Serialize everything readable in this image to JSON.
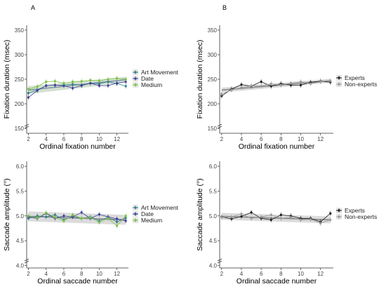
{
  "panel_labels": [
    "A",
    "B"
  ],
  "colors": {
    "art_movement": "#2e7d86",
    "date": "#3b3f9a",
    "medium": "#7ac143",
    "experts": "#1a1a1a",
    "non_experts": "#9a9a9a",
    "band_fix": "#c8d6c0",
    "band_gray": "#cfcfcf",
    "fit_fix": "#7f95a8",
    "fit_gray": "#8a8a8a"
  },
  "chart_data": [
    {
      "panel": "A",
      "type": "line",
      "xlabel": "Ordinal fixation number",
      "ylabel": "Fixation duration (msec)",
      "xticks": [
        2,
        4,
        6,
        8,
        10,
        12
      ],
      "yticks": [
        150,
        200,
        250,
        300,
        350
      ],
      "xlim": [
        1.8,
        13.3
      ],
      "ylim": [
        140,
        360
      ],
      "x": [
        2,
        3,
        4,
        5,
        6,
        7,
        8,
        9,
        10,
        11,
        12,
        13
      ],
      "legend_position": "right",
      "series": [
        {
          "name": "Art Movement",
          "color_key": "art_movement",
          "values": [
            222,
            228,
            237,
            238,
            238,
            240,
            238,
            242,
            241,
            245,
            241,
            236
          ]
        },
        {
          "name": "Date",
          "color_key": "date",
          "values": [
            213,
            227,
            237,
            238,
            237,
            232,
            237,
            242,
            237,
            237,
            242,
            245
          ]
        },
        {
          "name": "Medium",
          "color_key": "medium",
          "values": [
            230,
            235,
            245,
            246,
            242,
            245,
            246,
            248,
            247,
            250,
            252,
            250
          ]
        }
      ],
      "fit": {
        "start": 228,
        "end": 249,
        "band_start": 8,
        "band_end": 6,
        "color_key": "fit_fix",
        "band_key": "band_fix"
      }
    },
    {
      "panel": "B",
      "type": "line",
      "xlabel": "Ordinal fixation number",
      "ylabel": "Fixation duration (msec)",
      "xticks": [
        2,
        4,
        6,
        8,
        10,
        12
      ],
      "yticks": [
        150,
        200,
        250,
        300,
        350
      ],
      "xlim": [
        1.8,
        13.3
      ],
      "ylim": [
        140,
        360
      ],
      "x": [
        2,
        3,
        4,
        5,
        6,
        7,
        8,
        9,
        10,
        11,
        12,
        13
      ],
      "legend_position": "right",
      "series": [
        {
          "name": "Experts",
          "color_key": "experts",
          "values": [
            216,
            230,
            239,
            236,
            245,
            236,
            241,
            238,
            238,
            244,
            246,
            244
          ]
        },
        {
          "name": "Non-experts",
          "color_key": "non_experts",
          "values": [
            220,
            228,
            233,
            237,
            236,
            241,
            238,
            242,
            245,
            241,
            245,
            247
          ]
        }
      ],
      "fit": {
        "start": 228,
        "end": 247,
        "band_start": 5,
        "band_end": 4,
        "color_key": "fit_gray",
        "band_key": "band_gray"
      }
    },
    {
      "panel": "A",
      "type": "line",
      "xlabel": "Ordinal saccade number",
      "ylabel": "Saccade amplitude (°)",
      "xticks": [
        2,
        4,
        6,
        8,
        10,
        12
      ],
      "yticks": [
        4.0,
        4.5,
        5.0,
        5.5,
        6.0
      ],
      "xlim": [
        1.8,
        13.3
      ],
      "ylim": [
        3.95,
        6.1
      ],
      "x": [
        2,
        3,
        4,
        5,
        6,
        7,
        8,
        9,
        10,
        11,
        12,
        13
      ],
      "legend_position": "right",
      "series": [
        {
          "name": "Art Movement",
          "color_key": "art_movement",
          "values": [
            4.95,
            5.0,
            4.98,
            5.02,
            4.92,
            4.99,
            4.95,
            4.98,
            4.9,
            4.97,
            4.88,
            4.96
          ]
        },
        {
          "name": "Date",
          "color_key": "date",
          "values": [
            4.98,
            4.95,
            5.05,
            4.95,
            5.0,
            4.98,
            5.07,
            4.95,
            5.03,
            4.98,
            4.94,
            4.9
          ]
        },
        {
          "name": "Medium",
          "color_key": "medium",
          "values": [
            5.0,
            4.96,
            5.06,
            4.97,
            4.9,
            5.02,
            4.95,
            4.97,
            4.87,
            4.95,
            4.8,
            5.0
          ]
        }
      ],
      "fit": {
        "start": 4.99,
        "end": 4.92,
        "band_start": 0.1,
        "band_end": 0.1,
        "color_key": "fit_gray",
        "band_key": "band_gray"
      }
    },
    {
      "panel": "B",
      "type": "line",
      "xlabel": "Ordinal saccade number",
      "ylabel": "Saccade amplitude (°)",
      "xticks": [
        2,
        4,
        6,
        8,
        10,
        12
      ],
      "yticks": [
        4.0,
        4.5,
        5.0,
        5.5,
        6.0
      ],
      "xlim": [
        1.8,
        13.3
      ],
      "ylim": [
        3.95,
        6.1
      ],
      "x": [
        2,
        3,
        4,
        5,
        6,
        7,
        8,
        9,
        10,
        11,
        12,
        13
      ],
      "legend_position": "right",
      "series": [
        {
          "name": "Experts",
          "color_key": "experts",
          "values": [
            4.98,
            4.94,
            4.99,
            5.07,
            4.95,
            4.92,
            5.02,
            5.0,
            4.95,
            4.95,
            4.88,
            5.05
          ]
        },
        {
          "name": "Non-experts",
          "color_key": "non_experts",
          "values": [
            4.97,
            4.98,
            5.04,
            4.95,
            4.98,
            5.02,
            4.95,
            4.97,
            4.92,
            4.93,
            4.85,
            4.92
          ]
        }
      ],
      "fit": {
        "start": 4.99,
        "end": 4.92,
        "band_start": 0.07,
        "band_end": 0.07,
        "color_key": "fit_gray",
        "band_key": "band_gray"
      }
    }
  ]
}
